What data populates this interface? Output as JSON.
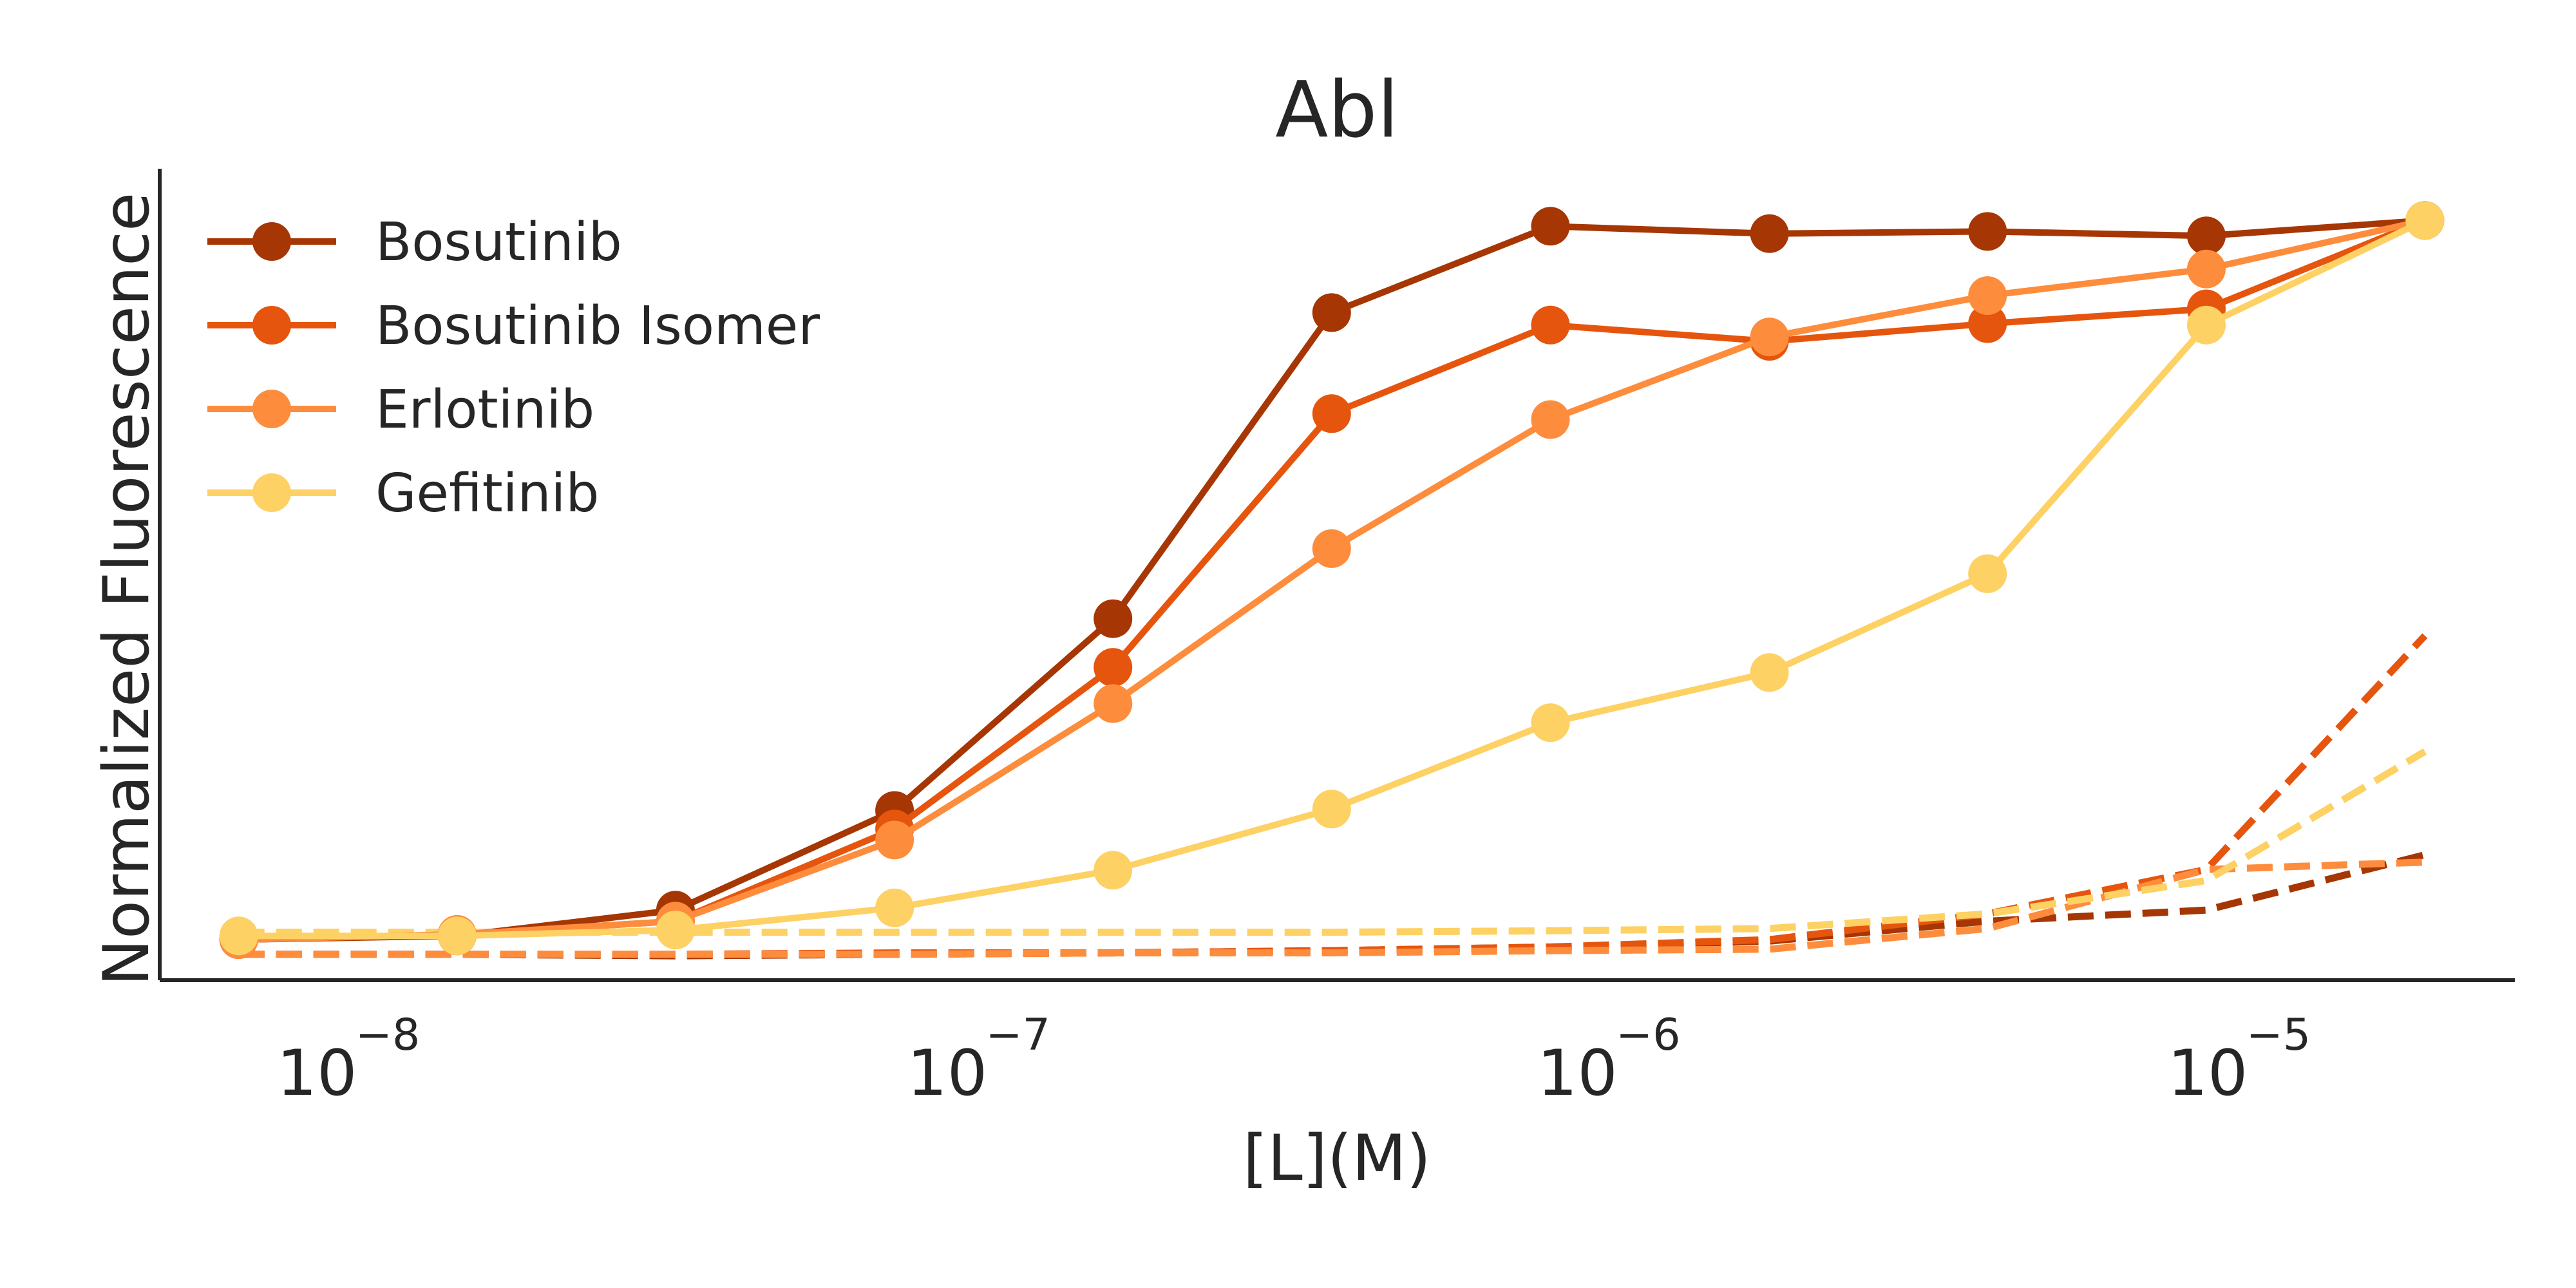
{
  "chart_data": {
    "type": "line",
    "title": "Abl",
    "xlabel": "[L](M)",
    "ylabel": "Normalized Fluorescence",
    "xscale": "log",
    "xlim": [
      5.5e-09,
      3e-05
    ],
    "ylim": [
      -0.05,
      1.05
    ],
    "grid": false,
    "legend": "top-left",
    "x_ticks": [
      {
        "value": 1e-08,
        "base": "10",
        "exp": "−8"
      },
      {
        "value": 1e-07,
        "base": "10",
        "exp": "−7"
      },
      {
        "value": 1e-06,
        "base": "10",
        "exp": "−6"
      },
      {
        "value": 1e-05,
        "base": "10",
        "exp": "−5"
      }
    ],
    "x": [
      7.34e-09,
      1.63e-08,
      3.62e-08,
      8.06e-08,
      1.79e-07,
      3.98e-07,
      8.85e-07,
      1.97e-06,
      4.37e-06,
      9.72e-06,
      2.16e-05
    ],
    "series": [
      {
        "name": "Bosutinib",
        "color": "#a63603",
        "style": "solid-marker",
        "values": [
          0.005,
          0.01,
          0.045,
          0.18,
          0.44,
          0.855,
          0.972,
          0.962,
          0.965,
          0.959,
          0.98
        ]
      },
      {
        "name": "Bosutinib Isomer",
        "color": "#e6550d",
        "style": "solid-marker",
        "values": [
          0.005,
          0.012,
          0.03,
          0.155,
          0.374,
          0.718,
          0.838,
          0.816,
          0.84,
          0.86,
          0.98
        ]
      },
      {
        "name": "Erlotinib",
        "color": "#fd8d3c",
        "style": "solid-marker",
        "values": [
          0.005,
          0.012,
          0.03,
          0.14,
          0.325,
          0.535,
          0.71,
          0.822,
          0.878,
          0.914,
          0.98
        ]
      },
      {
        "name": "Gefitinib",
        "color": "#fdd163",
        "style": "solid-marker",
        "values": [
          0.01,
          0.01,
          0.018,
          0.048,
          0.099,
          0.182,
          0.299,
          0.367,
          0.501,
          0.838,
          0.98
        ]
      },
      {
        "name": "",
        "color": "#a63603",
        "style": "dashed",
        "values": [
          -0.015,
          -0.015,
          -0.017,
          -0.015,
          -0.013,
          -0.01,
          -0.005,
          0.003,
          0.03,
          0.045,
          0.12
        ]
      },
      {
        "name": "",
        "color": "#e6550d",
        "style": "dashed",
        "values": [
          -0.015,
          -0.015,
          -0.015,
          -0.013,
          -0.013,
          -0.01,
          -0.005,
          0.005,
          0.04,
          0.1,
          0.417
        ]
      },
      {
        "name": "",
        "color": "#fd8d3c",
        "style": "dashed",
        "values": [
          -0.015,
          -0.015,
          -0.015,
          -0.015,
          -0.013,
          -0.013,
          -0.01,
          -0.008,
          0.02,
          0.1,
          0.11
        ]
      },
      {
        "name": "",
        "color": "#fdd163",
        "style": "dashed",
        "values": [
          0.015,
          0.015,
          0.015,
          0.015,
          0.015,
          0.015,
          0.017,
          0.02,
          0.04,
          0.085,
          0.26
        ]
      }
    ]
  }
}
